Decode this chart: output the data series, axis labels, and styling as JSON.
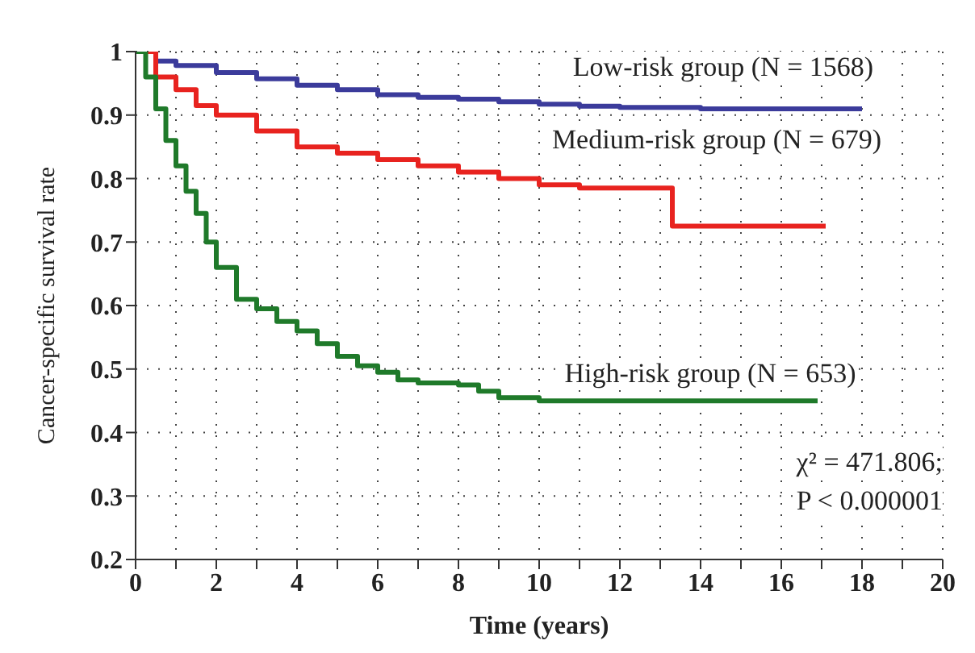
{
  "chart_data": {
    "type": "step",
    "xlabel": "Time (years)",
    "ylabel": "Cancer-specific survival rate",
    "xlim": [
      0,
      20
    ],
    "ylim": [
      0.2,
      1.0
    ],
    "xticks": [
      0,
      {
        "value": 1,
        "label": null
      },
      2,
      {
        "value": 3,
        "label": null
      },
      4,
      {
        "value": 5,
        "label": null
      },
      6,
      {
        "value": 7,
        "label": null
      },
      8,
      {
        "value": 9,
        "label": null
      },
      10,
      {
        "value": 11,
        "label": null
      },
      12,
      {
        "value": 13,
        "label": null
      },
      14,
      {
        "value": 15,
        "label": null
      },
      16,
      {
        "value": 17,
        "label": null
      },
      18,
      {
        "value": 19,
        "label": null
      },
      20
    ],
    "yticks": [
      {
        "value": 0.2,
        "label": "0.2"
      },
      {
        "value": 0.3,
        "label": "0.3"
      },
      {
        "value": 0.4,
        "label": "0.4"
      },
      {
        "value": 0.5,
        "label": "0.5"
      },
      {
        "value": 0.6,
        "label": "0.6"
      },
      {
        "value": 0.7,
        "label": "0.7"
      },
      {
        "value": 0.8,
        "label": "0.8"
      },
      {
        "value": 0.9,
        "label": "0.9"
      },
      {
        "value": 1.0,
        "label": "1"
      }
    ],
    "grid": true,
    "marker": "none",
    "series": [
      {
        "color": "#3b3b9b",
        "x": [
          0,
          0.5,
          1,
          2,
          3,
          4,
          5,
          6,
          7,
          8,
          9,
          10,
          11,
          12,
          14,
          16,
          18
        ],
        "values": [
          1.0,
          0.985,
          0.978,
          0.967,
          0.957,
          0.947,
          0.94,
          0.932,
          0.928,
          0.925,
          0.921,
          0.917,
          0.914,
          0.912,
          0.91,
          0.91,
          0.91
        ]
      },
      {
        "color": "#e8231f",
        "x": [
          0,
          0.5,
          1,
          1.5,
          2,
          3,
          4,
          5,
          6,
          7,
          8,
          9,
          10,
          11,
          12,
          13.3,
          14,
          16,
          17.1
        ],
        "values": [
          1.0,
          0.96,
          0.94,
          0.915,
          0.9,
          0.875,
          0.85,
          0.84,
          0.83,
          0.82,
          0.81,
          0.8,
          0.79,
          0.785,
          0.785,
          0.725,
          0.725,
          0.725,
          0.725
        ]
      },
      {
        "color": "#1f7a2a",
        "x": [
          0,
          0.25,
          0.5,
          0.75,
          1,
          1.25,
          1.5,
          1.75,
          2,
          2.5,
          3,
          3.5,
          4,
          4.5,
          5,
          5.5,
          6,
          6.5,
          7,
          8,
          8.5,
          9,
          10,
          12,
          14,
          16.9
        ],
        "values": [
          1.0,
          0.96,
          0.91,
          0.86,
          0.82,
          0.78,
          0.745,
          0.7,
          0.66,
          0.61,
          0.595,
          0.575,
          0.56,
          0.54,
          0.52,
          0.505,
          0.495,
          0.483,
          0.478,
          0.475,
          0.465,
          0.455,
          0.45,
          0.45,
          0.45,
          0.45
        ]
      }
    ],
    "annotations": [
      "Low-risk group (N = 1568)",
      "Medium-risk group (N = 679)",
      "High-risk group (N = 653)",
      "χ² = 471.806;",
      "P < 0.000001"
    ]
  }
}
